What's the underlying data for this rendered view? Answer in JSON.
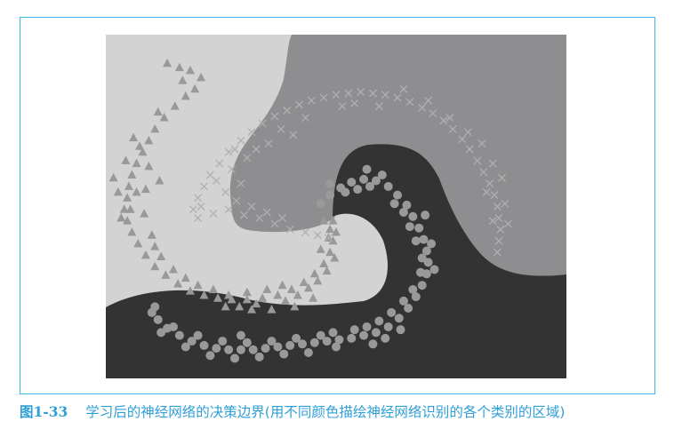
{
  "figure": {
    "caption_number": "图1-33",
    "caption_text": "学习后的神经网络的决策边界(用不同颜色描绘神经网络识别的各个类别的区域)"
  },
  "chart_data": {
    "type": "scatter",
    "title": "",
    "xlabel": "",
    "ylabel": "",
    "region_colors": {
      "triangle_class": "#d3d3d3",
      "cross_class": "#8e8e90",
      "circle_class": "#333333"
    },
    "marker_color": "#999999",
    "series": [
      {
        "marker": "triangle",
        "region": "light",
        "points": [
          [
            -1.1,
            1.0
          ],
          [
            -1.02,
            0.97
          ],
          [
            -0.95,
            0.95
          ],
          [
            -0.88,
            0.9
          ],
          [
            -0.92,
            0.82
          ],
          [
            -0.98,
            0.77
          ],
          [
            -1.05,
            0.7
          ],
          [
            -1.12,
            0.62
          ],
          [
            -1.18,
            0.54
          ],
          [
            -1.22,
            0.46
          ],
          [
            -1.26,
            0.38
          ],
          [
            -1.3,
            0.3
          ],
          [
            -1.33,
            0.22
          ],
          [
            -1.35,
            0.14
          ],
          [
            -1.36,
            0.06
          ],
          [
            -1.38,
            -0.02
          ],
          [
            -1.36,
            -0.1
          ],
          [
            -1.33,
            -0.18
          ],
          [
            -1.29,
            -0.26
          ],
          [
            -1.24,
            -0.34
          ],
          [
            -1.18,
            -0.42
          ],
          [
            -1.11,
            -0.48
          ],
          [
            -1.03,
            -0.54
          ],
          [
            -0.95,
            -0.59
          ],
          [
            -0.86,
            -0.62
          ],
          [
            -0.77,
            -0.64
          ],
          [
            -0.68,
            -0.65
          ],
          [
            -0.58,
            -0.65
          ],
          [
            -0.48,
            -0.64
          ],
          [
            -0.38,
            -0.62
          ],
          [
            -0.29,
            -0.58
          ],
          [
            -0.21,
            -0.53
          ],
          [
            -0.14,
            -0.47
          ],
          [
            -0.08,
            -0.4
          ],
          [
            -0.04,
            -0.32
          ],
          [
            -0.02,
            -0.24
          ],
          [
            -0.04,
            -0.16
          ],
          [
            -0.08,
            -0.1
          ],
          [
            -1.28,
            0.42
          ],
          [
            -1.22,
            0.28
          ],
          [
            -1.15,
            0.18
          ],
          [
            -1.3,
            0.1
          ],
          [
            -1.25,
            -0.05
          ],
          [
            -1.2,
            -0.2
          ],
          [
            -1.14,
            -0.35
          ],
          [
            -0.9,
            -0.55
          ],
          [
            -0.8,
            -0.58
          ],
          [
            -0.63,
            -0.7
          ],
          [
            -0.52,
            -0.68
          ],
          [
            -0.42,
            -0.72
          ],
          [
            -0.33,
            -0.66
          ],
          [
            -0.25,
            -0.62
          ],
          [
            -0.18,
            -0.57
          ],
          [
            -0.12,
            -0.52
          ],
          [
            -0.06,
            -0.45
          ],
          [
            -0.1,
            -0.3
          ],
          [
            -0.01,
            -0.36
          ],
          [
            -0.02,
            -0.1
          ],
          [
            -1.37,
            0.32
          ],
          [
            -1.32,
            0.48
          ],
          [
            -1.16,
            0.66
          ],
          [
            -1.0,
            0.88
          ],
          [
            -1.42,
            0.1
          ],
          [
            -1.4,
            -0.08
          ],
          [
            -1.06,
            -0.44
          ],
          [
            -0.72,
            -0.7
          ],
          [
            -0.58,
            -0.6
          ],
          [
            -0.45,
            -0.58
          ],
          [
            -0.35,
            -0.55
          ],
          [
            -0.27,
            -0.7
          ],
          [
            -0.15,
            -0.64
          ],
          [
            -1.45,
            0.2
          ],
          [
            -1.24,
            0.12
          ],
          [
            -1.18,
            -0.28
          ],
          [
            -0.98,
            -0.5
          ],
          [
            -0.05,
            -0.22
          ],
          [
            0.0,
            -0.18
          ],
          [
            -0.7,
            -0.62
          ],
          [
            -0.55,
            -0.72
          ],
          [
            -1.34,
            -0.02
          ]
        ]
      },
      {
        "marker": "cross",
        "region": "mid",
        "points": [
          [
            -0.62,
            0.46
          ],
          [
            -0.55,
            0.52
          ],
          [
            -0.48,
            0.58
          ],
          [
            -0.4,
            0.63
          ],
          [
            -0.32,
            0.67
          ],
          [
            -0.24,
            0.71
          ],
          [
            -0.16,
            0.74
          ],
          [
            -0.08,
            0.76
          ],
          [
            0.0,
            0.78
          ],
          [
            0.08,
            0.79
          ],
          [
            0.16,
            0.8
          ],
          [
            0.24,
            0.79
          ],
          [
            0.32,
            0.78
          ],
          [
            0.4,
            0.76
          ],
          [
            0.48,
            0.73
          ],
          [
            0.56,
            0.69
          ],
          [
            0.63,
            0.65
          ],
          [
            0.7,
            0.6
          ],
          [
            0.76,
            0.54
          ],
          [
            0.82,
            0.47
          ],
          [
            0.87,
            0.4
          ],
          [
            0.92,
            0.32
          ],
          [
            0.96,
            0.24
          ],
          [
            1.0,
            0.16
          ],
          [
            1.03,
            0.08
          ],
          [
            1.05,
            0.0
          ],
          [
            1.06,
            -0.08
          ],
          [
            1.07,
            -0.16
          ],
          [
            1.06,
            -0.24
          ],
          [
            1.05,
            -0.32
          ],
          [
            -0.7,
            0.38
          ],
          [
            -0.76,
            0.3
          ],
          [
            -0.82,
            0.22
          ],
          [
            -0.86,
            0.14
          ],
          [
            -0.9,
            0.06
          ],
          [
            -0.93,
            -0.02
          ],
          [
            -0.9,
            -0.08
          ],
          [
            -0.8,
            -0.05
          ],
          [
            -0.7,
            -0.02
          ],
          [
            -0.6,
            -0.06
          ],
          [
            -0.5,
            -0.08
          ],
          [
            -0.4,
            -0.12
          ],
          [
            -0.3,
            -0.16
          ],
          [
            -0.2,
            -0.18
          ],
          [
            -0.12,
            -0.2
          ],
          [
            -0.05,
            -0.22
          ],
          [
            -0.66,
            0.4
          ],
          [
            -0.58,
            0.34
          ],
          [
            -0.52,
            0.4
          ],
          [
            -0.44,
            0.44
          ],
          [
            -0.36,
            0.54
          ],
          [
            -0.28,
            0.5
          ],
          [
            -0.72,
            0.1
          ],
          [
            -0.65,
            0.04
          ],
          [
            -0.55,
            0.0
          ],
          [
            -0.45,
            -0.04
          ],
          [
            -0.35,
            -0.08
          ],
          [
            0.12,
            0.72
          ],
          [
            0.28,
            0.7
          ],
          [
            0.44,
            0.82
          ],
          [
            0.6,
            0.74
          ],
          [
            0.74,
            0.62
          ],
          [
            0.86,
            0.52
          ],
          [
            0.95,
            0.44
          ],
          [
            1.02,
            0.3
          ],
          [
            1.08,
            0.2
          ],
          [
            1.1,
            0.02
          ],
          [
            1.02,
            -0.1
          ],
          [
            1.12,
            -0.12
          ],
          [
            0.98,
            0.1
          ],
          [
            -0.78,
            0.18
          ],
          [
            -0.88,
            0.0
          ],
          [
            -0.62,
            0.16
          ],
          [
            -0.68,
            0.26
          ],
          [
            -0.2,
            0.62
          ],
          [
            0.04,
            0.7
          ]
        ]
      },
      {
        "marker": "circle",
        "region": "dark",
        "points": [
          [
            -0.1,
            0.02
          ],
          [
            -0.04,
            0.08
          ],
          [
            0.03,
            0.13
          ],
          [
            0.1,
            0.17
          ],
          [
            0.18,
            0.19
          ],
          [
            0.26,
            0.18
          ],
          [
            0.34,
            0.14
          ],
          [
            0.4,
            0.08
          ],
          [
            0.46,
            0.01
          ],
          [
            0.5,
            -0.07
          ],
          [
            0.54,
            -0.15
          ],
          [
            0.57,
            -0.23
          ],
          [
            0.59,
            -0.31
          ],
          [
            0.6,
            -0.39
          ],
          [
            0.59,
            -0.47
          ],
          [
            0.56,
            -0.55
          ],
          [
            0.52,
            -0.63
          ],
          [
            0.47,
            -0.71
          ],
          [
            0.41,
            -0.78
          ],
          [
            0.34,
            -0.84
          ],
          [
            0.26,
            -0.88
          ],
          [
            0.18,
            -0.9
          ],
          [
            0.1,
            -0.92
          ],
          [
            0.02,
            -0.93
          ],
          [
            -0.06,
            -0.94
          ],
          [
            -0.14,
            -0.95
          ],
          [
            -0.22,
            -0.96
          ],
          [
            -0.3,
            -0.97
          ],
          [
            -0.38,
            -0.98
          ],
          [
            -0.46,
            -0.99
          ],
          [
            -0.54,
            -1.0
          ],
          [
            -0.62,
            -1.0
          ],
          [
            -0.7,
            -1.0
          ],
          [
            -0.78,
            -0.99
          ],
          [
            -0.86,
            -0.97
          ],
          [
            -0.94,
            -0.94
          ],
          [
            -1.02,
            -0.9
          ],
          [
            -1.1,
            -0.85
          ],
          [
            -1.16,
            -0.79
          ],
          [
            -1.2,
            -0.74
          ],
          [
            0.06,
            0.1
          ],
          [
            0.14,
            0.12
          ],
          [
            0.22,
            0.14
          ],
          [
            0.3,
            0.22
          ],
          [
            0.38,
            0.02
          ],
          [
            0.44,
            -0.04
          ],
          [
            0.48,
            -0.14
          ],
          [
            0.52,
            -0.24
          ],
          [
            0.62,
            -0.26
          ],
          [
            0.64,
            -0.44
          ],
          [
            0.55,
            -0.46
          ],
          [
            0.5,
            -0.58
          ],
          [
            0.44,
            -0.66
          ],
          [
            0.36,
            -0.74
          ],
          [
            0.28,
            -0.8
          ],
          [
            0.2,
            -0.84
          ],
          [
            0.12,
            -0.86
          ],
          [
            0.24,
            -0.96
          ],
          [
            -0.02,
            -0.88
          ],
          [
            -0.1,
            -0.9
          ],
          [
            -0.18,
            -1.02
          ],
          [
            -0.26,
            -0.92
          ],
          [
            -0.34,
            -1.03
          ],
          [
            -0.42,
            -0.94
          ],
          [
            -0.5,
            -1.05
          ],
          [
            -0.58,
            -0.95
          ],
          [
            -0.66,
            -1.06
          ],
          [
            -0.74,
            -0.94
          ],
          [
            -0.82,
            -1.04
          ],
          [
            -0.9,
            -0.9
          ],
          [
            -0.98,
            -0.98
          ],
          [
            -1.06,
            -0.84
          ],
          [
            -1.14,
            -0.88
          ],
          [
            -1.18,
            -0.7
          ],
          [
            0.42,
            -0.86
          ],
          [
            0.56,
            -0.36
          ],
          [
            0.58,
            -0.06
          ],
          [
            0.2,
            0.26
          ],
          [
            -0.04,
            0.16
          ],
          [
            0.32,
            -0.92
          ],
          [
            0.0,
            -0.98
          ],
          [
            -0.62,
            -0.9
          ]
        ]
      }
    ]
  }
}
